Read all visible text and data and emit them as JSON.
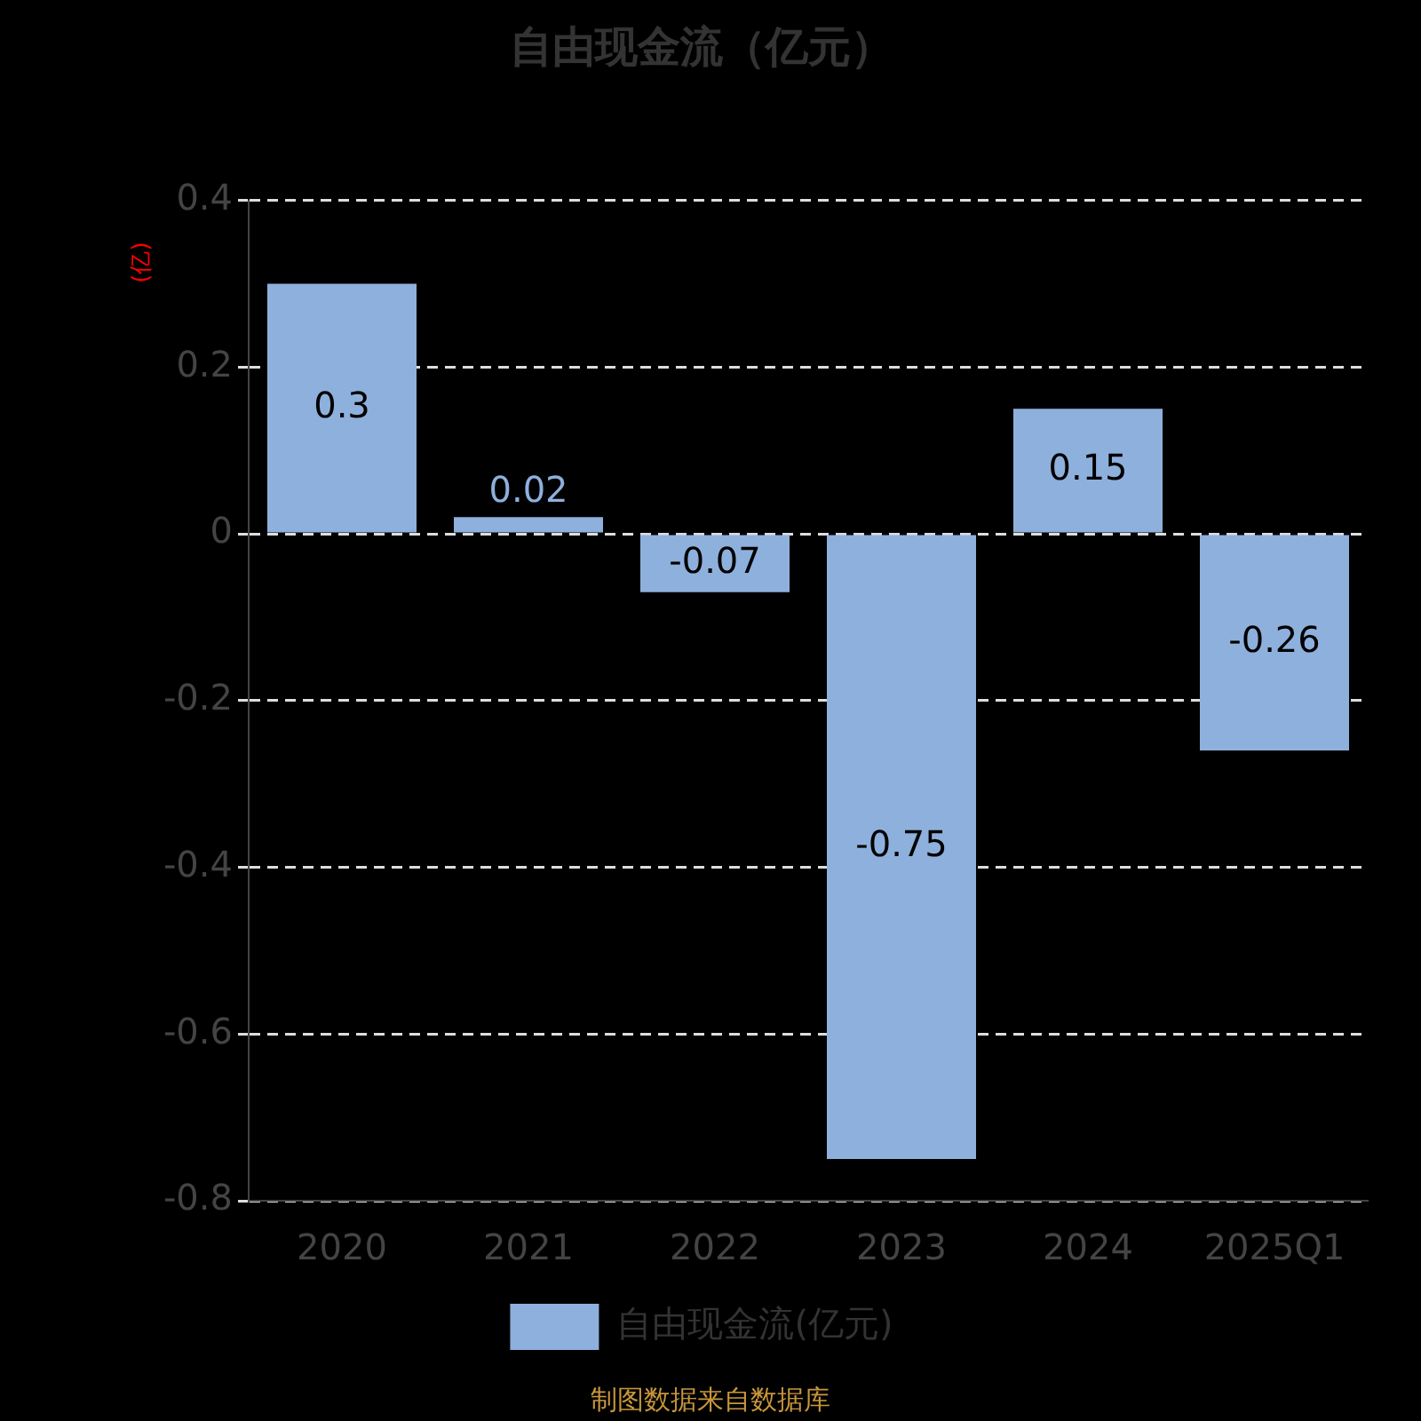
{
  "chart_data": {
    "type": "bar",
    "title": "自由现金流（亿元）",
    "ylabel": "(亿)",
    "categories": [
      "2020",
      "2021",
      "2022",
      "2023",
      "2024",
      "2025Q1"
    ],
    "series": [
      {
        "name": "自由现金流(亿元)",
        "color": "#8eb0dd",
        "values": [
          0.3,
          0.02,
          -0.07,
          -0.75,
          0.15,
          -0.26
        ]
      }
    ],
    "ylim": [
      -0.8,
      0.4
    ],
    "yticks": [
      -0.8,
      -0.6,
      -0.4,
      -0.2,
      0,
      0.2,
      0.4
    ],
    "grid": "y",
    "legend": "bottom",
    "data_labels": true,
    "annotations": [
      "制图数据来自数据库"
    ]
  }
}
